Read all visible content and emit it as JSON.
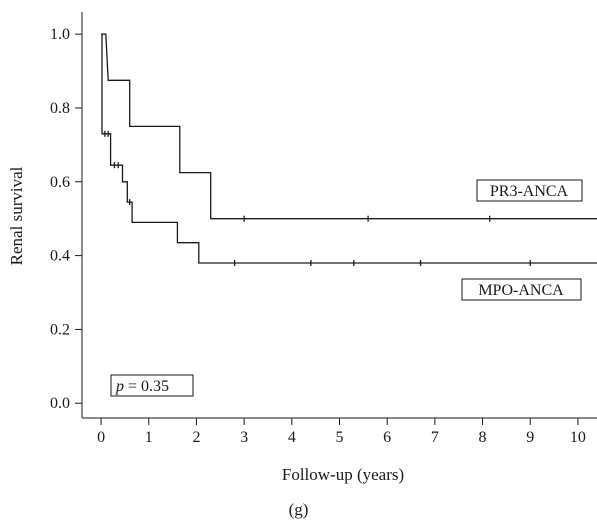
{
  "chart_data": {
    "type": "line",
    "xlabel": "Follow-up (years)",
    "ylabel": "Renal survival",
    "xlim": [
      -0.4,
      10.4
    ],
    "ylim": [
      -0.04,
      1.06
    ],
    "xticks": [
      0,
      1,
      2,
      3,
      4,
      5,
      6,
      7,
      8,
      9,
      10
    ],
    "yticks": [
      0.0,
      0.2,
      0.4,
      0.6,
      0.8,
      1.0
    ],
    "ytick_labels": [
      "0.0",
      "0.2",
      "0.4",
      "0.6",
      "0.8",
      "1.0"
    ],
    "grid": false,
    "legend": "none",
    "series": [
      {
        "name": "PR3-ANCA",
        "step": true,
        "x": [
          0,
          0.1,
          0.15,
          0.6,
          0.6,
          1.65,
          1.65,
          2.3,
          2.3,
          10.4
        ],
        "y": [
          1.0,
          1.0,
          0.875,
          0.875,
          0.75,
          0.75,
          0.625,
          0.625,
          0.5,
          0.5
        ],
        "censored_x": [
          3.0,
          5.6,
          8.15
        ],
        "censored_y": [
          0.5,
          0.5,
          0.5
        ]
      },
      {
        "name": "MPO-ANCA",
        "step": true,
        "x": [
          0,
          0.02,
          0.02,
          0.2,
          0.2,
          0.45,
          0.45,
          0.55,
          0.55,
          0.65,
          0.65,
          1.6,
          1.6,
          2.05,
          2.05,
          10.4
        ],
        "y": [
          1.0,
          1.0,
          0.73,
          0.73,
          0.645,
          0.645,
          0.6,
          0.6,
          0.545,
          0.545,
          0.49,
          0.49,
          0.435,
          0.435,
          0.38,
          0.38
        ],
        "censored_x": [
          0.08,
          0.15,
          0.28,
          0.36,
          0.6,
          2.8,
          4.4,
          5.3,
          6.7,
          9.0
        ],
        "censored_y": [
          0.73,
          0.73,
          0.645,
          0.645,
          0.545,
          0.38,
          0.38,
          0.38,
          0.38,
          0.38
        ]
      }
    ],
    "annotations": {
      "pr3_label": "PR3-ANCA",
      "mpo_label": "MPO-ANCA",
      "p_italic": "p",
      "p_value": " = 0.35"
    },
    "panel_label": "(g)"
  }
}
